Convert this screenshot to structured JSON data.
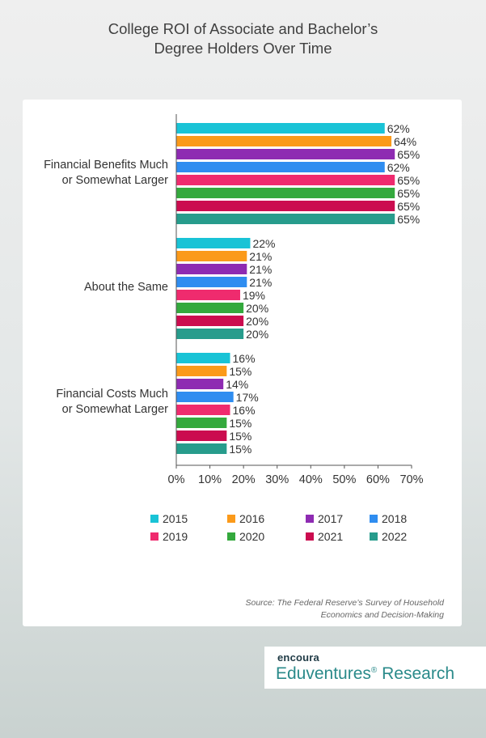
{
  "title_line1": "College ROI of Associate and Bachelor’s",
  "title_line2": "Degree Holders Over Time",
  "source_line1": "Source: The Federal Reserve’s Survey of Household",
  "source_line2": "Economics and Decision-Making",
  "logo": {
    "top": "encoura",
    "bottom": "Eduventures",
    "bottom_suffix": "Research",
    "reg_mark": "®"
  },
  "category_labels": [
    [
      "Financial Benefits Much",
      "or Somewhat Larger"
    ],
    [
      "About the Same"
    ],
    [
      "Financial Costs Much",
      "or Somewhat Larger"
    ]
  ],
  "colors": {
    "2015": "#19c3d6",
    "2016": "#fb9a1a",
    "2017": "#8e2bb2",
    "2018": "#2f8df0",
    "2019": "#ef2b6e",
    "2020": "#34a93d",
    "2021": "#cb0c4f",
    "2022": "#279c8c"
  },
  "chart_data": {
    "type": "bar",
    "orientation": "horizontal",
    "title": "College ROI of Associate and Bachelor’s Degree Holders Over Time",
    "categories": [
      "Financial Benefits Much or Somewhat Larger",
      "About the Same",
      "Financial Costs Much or Somewhat Larger"
    ],
    "series": [
      {
        "name": "2015",
        "values": [
          62,
          22,
          16
        ]
      },
      {
        "name": "2016",
        "values": [
          64,
          21,
          15
        ]
      },
      {
        "name": "2017",
        "values": [
          65,
          21,
          14
        ]
      },
      {
        "name": "2018",
        "values": [
          62,
          21,
          17
        ]
      },
      {
        "name": "2019",
        "values": [
          65,
          19,
          16
        ]
      },
      {
        "name": "2020",
        "values": [
          65,
          20,
          15
        ]
      },
      {
        "name": "2021",
        "values": [
          65,
          20,
          15
        ]
      },
      {
        "name": "2022",
        "values": [
          65,
          20,
          15
        ]
      }
    ],
    "xlim": [
      0,
      70
    ],
    "xticks": [
      "0%",
      "10%",
      "20%",
      "30%",
      "40%",
      "50%",
      "60%",
      "70%"
    ],
    "value_suffix": "%",
    "legend_position": "bottom",
    "grid": false
  }
}
